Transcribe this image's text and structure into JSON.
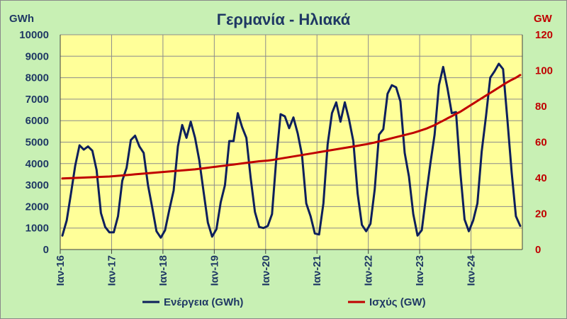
{
  "chart_data": {
    "type": "line",
    "title": "Γερμανία - Ηλιακά",
    "y_left_unit": "GWh",
    "y_right_unit": "GW",
    "ylim_left": [
      0,
      10000
    ],
    "ylim_right": [
      0,
      120
    ],
    "yticks_left": [
      "0",
      "1000",
      "2000",
      "3000",
      "4000",
      "5000",
      "6000",
      "7000",
      "8000",
      "9000",
      "10000"
    ],
    "yticks_right": [
      "0",
      "20",
      "40",
      "60",
      "80",
      "100",
      "120"
    ],
    "x_start": "2016-01",
    "x_end": "2024-12",
    "x_tick_labels": [
      "Ιαν-16",
      "Ιαν-17",
      "Ιαν-18",
      "Ιαν-19",
      "Ιαν-20",
      "Ιαν-21",
      "Ιαν-22",
      "Ιαν-23",
      "Ιαν-24"
    ],
    "grid": true,
    "legend_position": "bottom",
    "series": [
      {
        "name": "Ενέργεια (GWh)",
        "axis": "left",
        "color": "#0d1f5c",
        "values": [
          650,
          1350,
          2600,
          3900,
          4850,
          4650,
          4800,
          4600,
          3700,
          1700,
          1050,
          800,
          800,
          1550,
          3200,
          3800,
          5100,
          5300,
          4800,
          4500,
          3000,
          1950,
          850,
          550,
          900,
          1850,
          2750,
          4800,
          5800,
          5200,
          5950,
          5200,
          4150,
          2700,
          1250,
          600,
          950,
          2200,
          3000,
          5050,
          5050,
          6350,
          5700,
          5200,
          3350,
          1750,
          1050,
          1000,
          1100,
          1650,
          4250,
          6300,
          6200,
          5650,
          6150,
          5400,
          4400,
          2150,
          1550,
          750,
          700,
          2150,
          4900,
          6350,
          6850,
          5950,
          6850,
          6050,
          5050,
          2600,
          1150,
          850,
          1200,
          2800,
          5350,
          5600,
          7250,
          7650,
          7550,
          6900,
          4500,
          3400,
          1650,
          650,
          900,
          2500,
          4000,
          5350,
          7650,
          8500,
          7500,
          6350,
          6400,
          3600,
          1400,
          850,
          1350,
          2150,
          4550,
          6200,
          8000,
          8300,
          8650,
          8400,
          6050,
          3600,
          1550,
          1100
        ]
      },
      {
        "name": "Ισχύς (GW)",
        "axis": "right",
        "color": "#c00000",
        "values": [
          39.7,
          39.8,
          39.9,
          40.0,
          40.1,
          40.2,
          40.3,
          40.4,
          40.5,
          40.6,
          40.7,
          40.8,
          41.0,
          41.2,
          41.4,
          41.6,
          41.8,
          42.0,
          42.2,
          42.4,
          42.6,
          42.8,
          43.0,
          43.2,
          43.4,
          43.6,
          43.8,
          44.0,
          44.2,
          44.4,
          44.6,
          44.8,
          45.1,
          45.4,
          45.7,
          46.0,
          46.3,
          46.6,
          46.9,
          47.2,
          47.5,
          47.8,
          48.1,
          48.4,
          48.7,
          49.0,
          49.3,
          49.5,
          49.7,
          50.0,
          50.4,
          50.8,
          51.2,
          51.6,
          52.0,
          52.4,
          52.8,
          53.2,
          53.6,
          54.0,
          54.4,
          54.8,
          55.2,
          55.6,
          56.0,
          56.4,
          56.8,
          57.2,
          57.6,
          58.0,
          58.4,
          58.8,
          59.3,
          59.8,
          60.4,
          61.0,
          61.6,
          62.2,
          62.8,
          63.4,
          64.0,
          64.6,
          65.2,
          65.9,
          66.7,
          67.5,
          68.5,
          69.5,
          70.8,
          72.0,
          73.3,
          74.5,
          75.8,
          77.0,
          78.5,
          80.0,
          81.5,
          83.0,
          84.5,
          86.0,
          87.5,
          89.0,
          90.5,
          92.0,
          93.5,
          94.8,
          96.0,
          97.5
        ]
      }
    ]
  }
}
